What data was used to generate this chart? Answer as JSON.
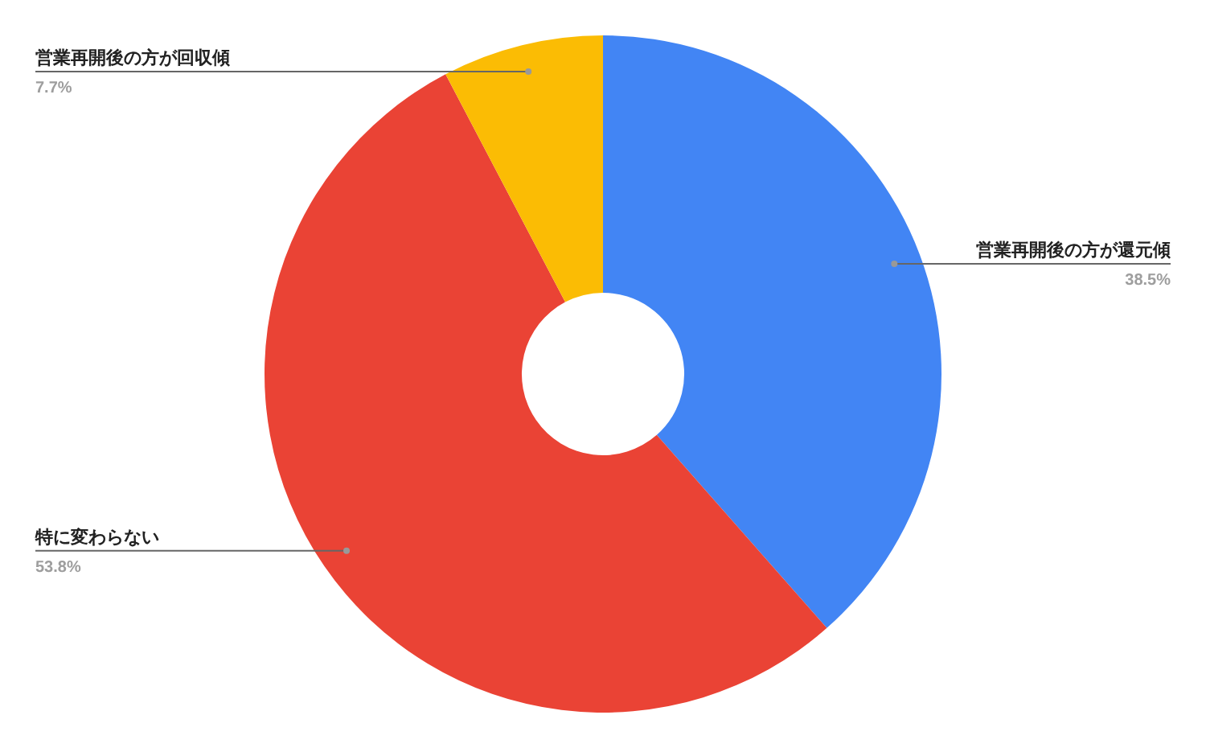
{
  "chart_data": {
    "type": "donut",
    "categories": [
      "営業再開後の方が還元傾",
      "特に変わらない",
      "営業再開後の方が回収傾"
    ],
    "values": [
      38.5,
      53.8,
      7.7
    ],
    "colors": [
      "#4285f4",
      "#ea4335",
      "#fbbc04"
    ],
    "value_labels": [
      "38.5%",
      "53.8%",
      "7.7%"
    ],
    "legend": false
  }
}
